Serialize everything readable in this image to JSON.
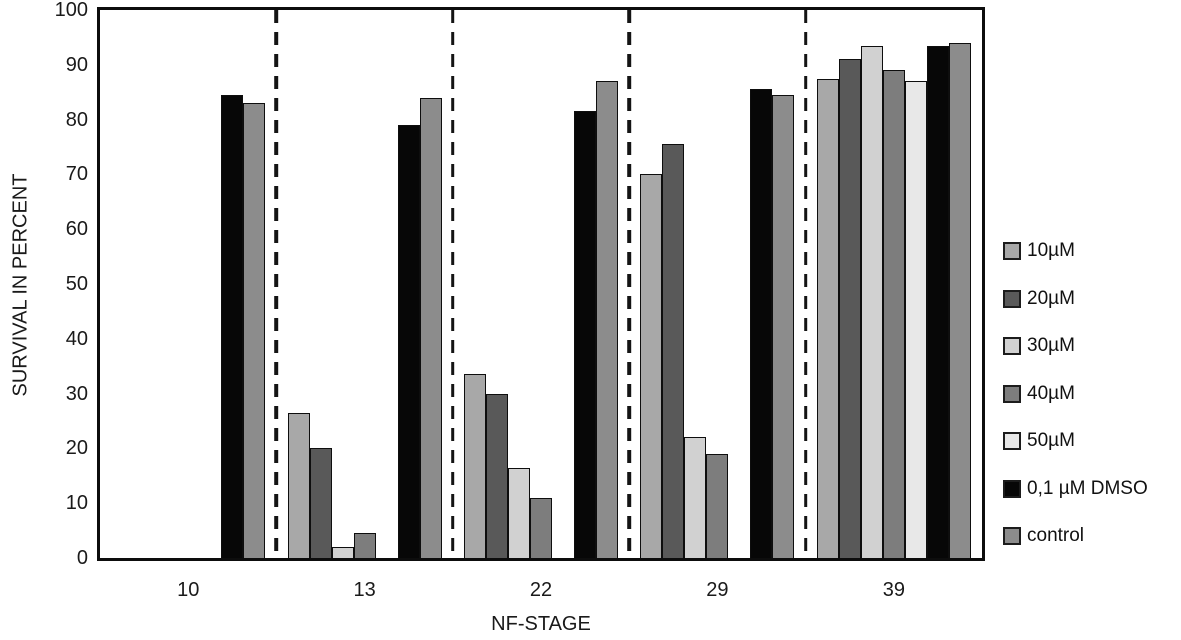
{
  "chart_data": {
    "type": "bar",
    "title": "",
    "xlabel": "NF-STAGE",
    "ylabel": "SURVIVAL IN PERCENT",
    "ylim": [
      0,
      100
    ],
    "yticks": [
      100,
      90,
      80,
      70,
      60,
      50,
      40,
      30,
      20,
      10,
      0
    ],
    "grid": false,
    "legend_position": "right",
    "group_separators": "vertical-dashed",
    "categories": [
      "10",
      "13",
      "22",
      "29",
      "39"
    ],
    "series": [
      {
        "name": "10µM",
        "color": "#a8a8a8",
        "values": [
          0,
          26.5,
          33.5,
          70,
          87.5
        ]
      },
      {
        "name": "20µM",
        "color": "#595959",
        "values": [
          0,
          20,
          30,
          75.5,
          91
        ]
      },
      {
        "name": "30µM",
        "color": "#d1d1d1",
        "values": [
          0,
          2,
          16.5,
          22,
          93.5
        ]
      },
      {
        "name": "40µM",
        "color": "#7d7d7d",
        "values": [
          0,
          4.5,
          11,
          19,
          89
        ]
      },
      {
        "name": "50µM",
        "color": "#e8e8e8",
        "values": [
          0,
          0,
          0,
          0,
          87
        ]
      },
      {
        "name": "0,1 µM DMSO",
        "color": "#070707",
        "values": [
          84.5,
          79,
          81.5,
          85.5,
          93.5
        ]
      },
      {
        "name": "control",
        "color": "#8c8c8c",
        "values": [
          83,
          84,
          87,
          84.5,
          94
        ]
      }
    ]
  }
}
